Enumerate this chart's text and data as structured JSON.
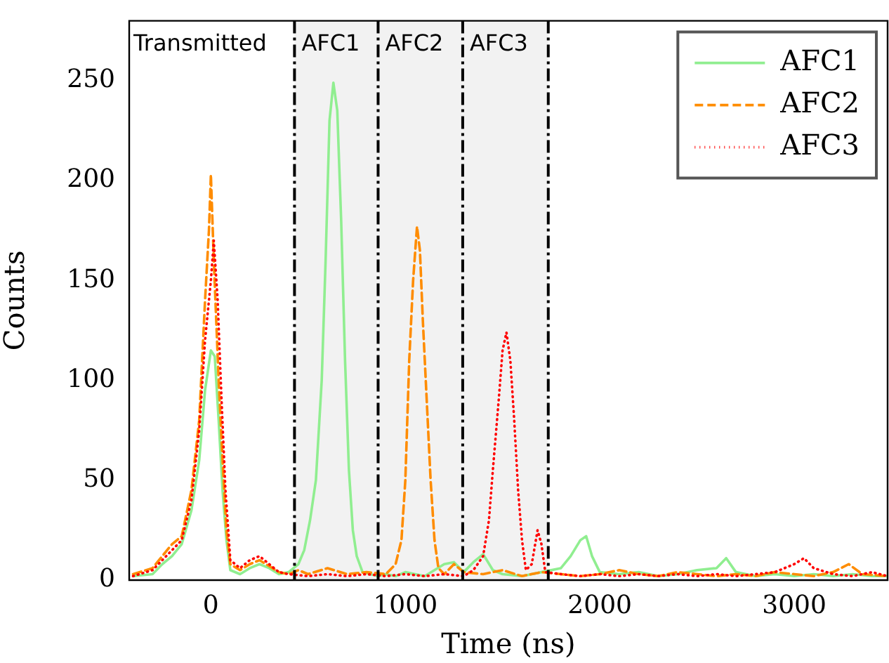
{
  "chart_data": {
    "type": "line",
    "xlabel": "Time (ns)",
    "ylabel": "Counts",
    "xlim": [
      -420,
      3480
    ],
    "ylim": [
      0,
      280
    ],
    "xticks": [
      0,
      1000,
      2000,
      3000
    ],
    "yticks": [
      0,
      50,
      100,
      150,
      200,
      250
    ],
    "grid": false,
    "legend": "top right",
    "marker": "none",
    "annotations": [
      "Transmitted"
    ],
    "bands": [
      {
        "axis": "x",
        "from": 430,
        "to": 860,
        "label": "AFC1",
        "color": "#f2f2f2"
      },
      {
        "axis": "x",
        "from": 860,
        "to": 1295,
        "label": "AFC2",
        "color": "#f2f2f2"
      },
      {
        "axis": "x",
        "from": 1295,
        "to": 1735,
        "label": "AFC3",
        "color": "#f2f2f2"
      }
    ],
    "ref_lines": [
      {
        "axis": "x",
        "value": 430,
        "color": "#000000",
        "line_style": "dashed"
      },
      {
        "axis": "x",
        "value": 860,
        "color": "#000000",
        "line_style": "dashed"
      },
      {
        "axis": "x",
        "value": 1295,
        "color": "#000000",
        "line_style": "dashed"
      },
      {
        "axis": "x",
        "value": 1735,
        "color": "#000000",
        "line_style": "dashed"
      }
    ],
    "series": [
      {
        "name": "AFC1",
        "color": "#90ee90",
        "line_style": "solid",
        "x": [
          -400,
          -300,
          -250,
          -200,
          -150,
          -100,
          -60,
          -30,
          0,
          20,
          40,
          60,
          80,
          100,
          150,
          200,
          250,
          300,
          350,
          400,
          450,
          480,
          510,
          540,
          570,
          590,
          610,
          630,
          650,
          670,
          690,
          710,
          730,
          750,
          780,
          820,
          860,
          900,
          950,
          1000,
          1050,
          1100,
          1150,
          1200,
          1250,
          1300,
          1350,
          1400,
          1450,
          1500,
          1600,
          1700,
          1800,
          1850,
          1900,
          1930,
          1960,
          2000,
          2100,
          2200,
          2300,
          2400,
          2500,
          2600,
          2650,
          2700,
          2800,
          2900,
          3000,
          3100,
          3200,
          3300,
          3400,
          3480
        ],
        "values": [
          2,
          3,
          8,
          12,
          18,
          35,
          60,
          95,
          115,
          112,
          80,
          45,
          20,
          5,
          3,
          6,
          8,
          6,
          3,
          4,
          8,
          15,
          30,
          50,
          100,
          160,
          230,
          249,
          235,
          180,
          110,
          55,
          25,
          12,
          4,
          3,
          2,
          3,
          2,
          4,
          3,
          2,
          5,
          8,
          9,
          4,
          9,
          13,
          5,
          3,
          2,
          4,
          6,
          12,
          20,
          22,
          12,
          4,
          3,
          4,
          2,
          3,
          5,
          6,
          11,
          4,
          2,
          3,
          2,
          3,
          2,
          3,
          2,
          2
        ]
      },
      {
        "name": "AFC2",
        "color": "#ff8c00",
        "line_style": "dashed",
        "x": [
          -400,
          -300,
          -250,
          -200,
          -150,
          -100,
          -60,
          -30,
          -10,
          0,
          15,
          40,
          60,
          80,
          100,
          150,
          200,
          250,
          300,
          350,
          400,
          450,
          500,
          600,
          700,
          800,
          900,
          950,
          980,
          1000,
          1020,
          1040,
          1060,
          1075,
          1090,
          1110,
          1130,
          1150,
          1170,
          1200,
          1250,
          1300,
          1400,
          1500,
          1600,
          1700,
          1800,
          1900,
          2000,
          2100,
          2200,
          2300,
          2400,
          2500,
          2600,
          2700,
          2800,
          2900,
          3000,
          3100,
          3200,
          3280,
          3350,
          3480
        ],
        "values": [
          3,
          6,
          12,
          18,
          22,
          45,
          80,
          140,
          175,
          203,
          160,
          100,
          60,
          25,
          8,
          5,
          8,
          10,
          7,
          4,
          3,
          5,
          3,
          6,
          3,
          4,
          3,
          8,
          20,
          50,
          110,
          150,
          177,
          165,
          130,
          90,
          50,
          20,
          6,
          3,
          8,
          4,
          3,
          5,
          2,
          4,
          3,
          2,
          3,
          5,
          3,
          2,
          4,
          3,
          2,
          3,
          2,
          4,
          3,
          2,
          4,
          8,
          3,
          2
        ]
      },
      {
        "name": "AFC3",
        "color": "#ff0000",
        "line_style": "dotted",
        "x": [
          -400,
          -300,
          -250,
          -200,
          -150,
          -100,
          -60,
          -30,
          0,
          15,
          35,
          55,
          75,
          100,
          150,
          200,
          250,
          300,
          350,
          400,
          500,
          600,
          700,
          800,
          900,
          1000,
          1100,
          1200,
          1300,
          1350,
          1400,
          1430,
          1450,
          1480,
          1500,
          1520,
          1540,
          1560,
          1580,
          1600,
          1620,
          1650,
          1680,
          1700,
          1720,
          1800,
          1900,
          2000,
          2100,
          2200,
          2300,
          2400,
          2500,
          2600,
          2700,
          2800,
          2900,
          3000,
          3050,
          3100,
          3200,
          3300,
          3400,
          3480
        ],
        "values": [
          2,
          5,
          10,
          15,
          20,
          40,
          75,
          120,
          150,
          170,
          140,
          90,
          45,
          10,
          6,
          10,
          12,
          8,
          4,
          3,
          2,
          3,
          2,
          3,
          2,
          3,
          2,
          3,
          2,
          5,
          12,
          30,
          55,
          90,
          115,
          124,
          110,
          80,
          45,
          20,
          5,
          8,
          25,
          18,
          4,
          3,
          2,
          3,
          2,
          3,
          2,
          3,
          2,
          3,
          2,
          3,
          4,
          8,
          11,
          6,
          3,
          2,
          4,
          2
        ]
      }
    ]
  }
}
